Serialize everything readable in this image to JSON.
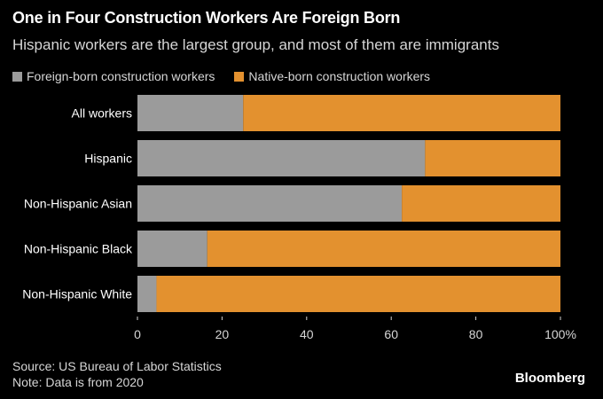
{
  "header": {
    "title": "One in Four Construction Workers Are Foreign Born",
    "subtitle": "Hispanic workers are the largest group, and most of them are immigrants"
  },
  "legend": {
    "items": [
      {
        "label": "Foreign-born construction workers",
        "color": "#9b9b9b"
      },
      {
        "label": "Native-born construction workers",
        "color": "#e3912f"
      }
    ]
  },
  "footer": {
    "source": "Source: US Bureau of Labor Statistics",
    "note": "Note: Data is from 2020",
    "brand": "Bloomberg"
  },
  "chart_data": {
    "type": "bar",
    "orientation": "horizontal",
    "stacked": true,
    "categories": [
      "All workers",
      "Hispanic",
      "Non-Hispanic Asian",
      "Non-Hispanic Black",
      "Non-Hispanic White"
    ],
    "series": [
      {
        "name": "Foreign-born construction workers",
        "color": "#9b9b9b",
        "values": [
          25,
          68,
          62.5,
          16.5,
          4.5
        ]
      },
      {
        "name": "Native-born construction workers",
        "color": "#e3912f",
        "values": [
          75,
          32,
          37.5,
          83.5,
          95.5
        ]
      }
    ],
    "xlim": [
      0,
      100
    ],
    "ticks": [
      "0",
      "20",
      "40",
      "60",
      "80",
      "100%"
    ],
    "tick_values": [
      0,
      20,
      40,
      60,
      80,
      100
    ],
    "grid": false,
    "legend_position": "top-left"
  }
}
